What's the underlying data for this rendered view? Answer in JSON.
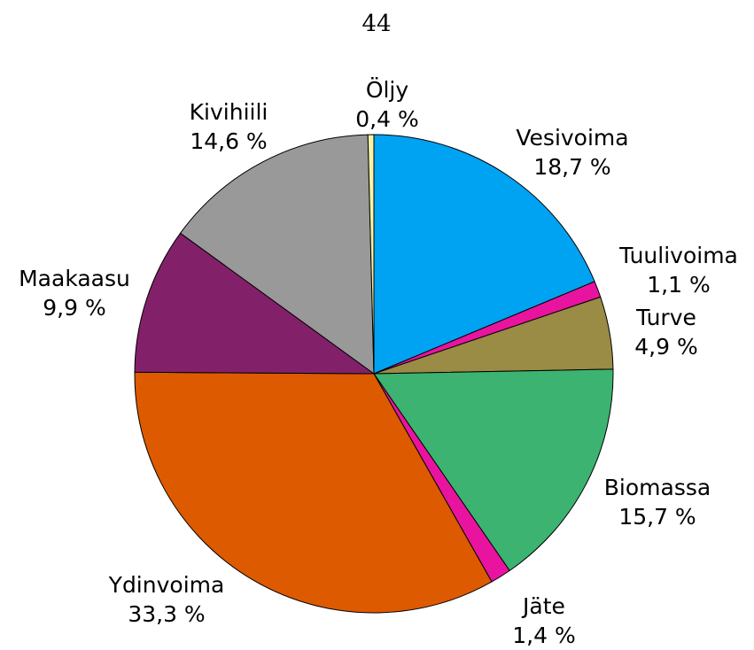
{
  "page_number": "44",
  "chart_data": {
    "type": "pie",
    "categories": [
      "Vesivoima",
      "Tuulivoima",
      "Turve",
      "Biomassa",
      "Jäte",
      "Ydinvoima",
      "Maakaasu",
      "Kivihiili",
      "Öljy"
    ],
    "values": [
      18.7,
      1.1,
      4.9,
      15.7,
      1.4,
      33.3,
      9.9,
      14.6,
      0.4
    ],
    "value_labels": [
      "18,7 %",
      "1,1 %",
      "4,9 %",
      "15,7 %",
      "1,4 %",
      "33,3 %",
      "9,9 %",
      "14,6 %",
      "0,4 %"
    ],
    "colors": [
      "#00a2f2",
      "#e8149f",
      "#9a8b45",
      "#3cb371",
      "#e8149f",
      "#dd5a00",
      "#82216a",
      "#999999",
      "#f4f4a8"
    ]
  }
}
